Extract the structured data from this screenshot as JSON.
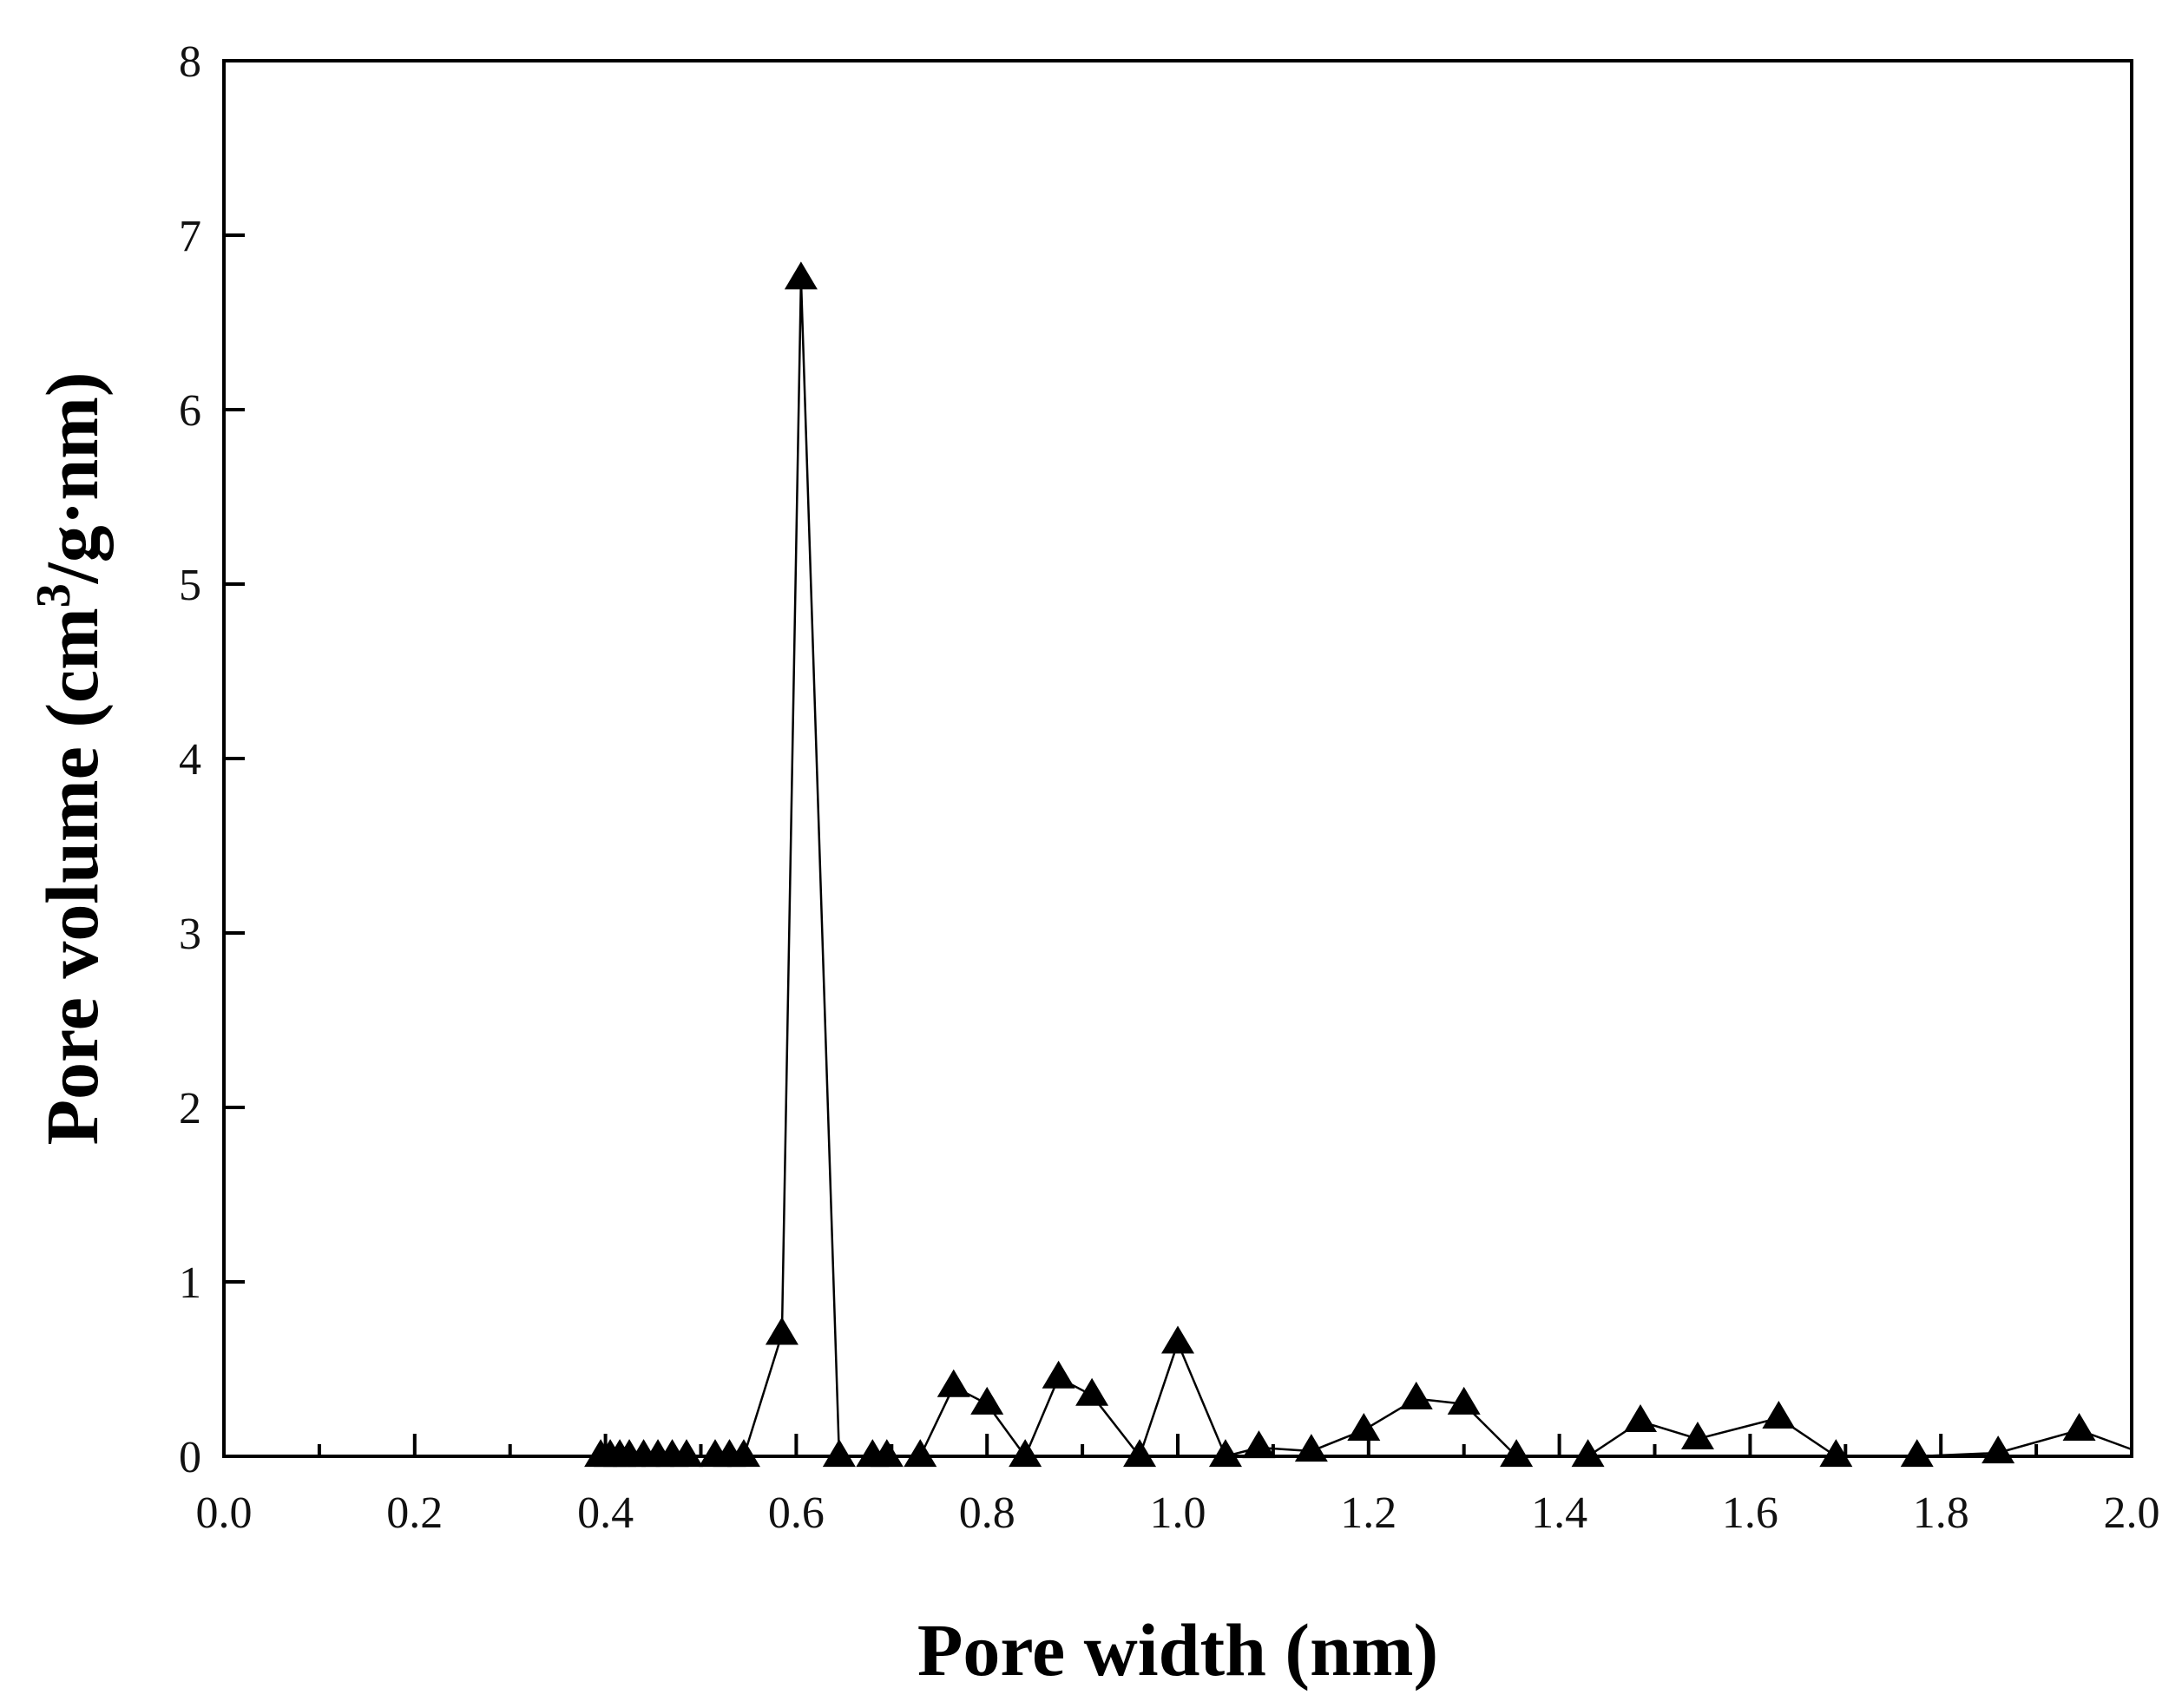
{
  "chart_data": {
    "type": "line",
    "title": "",
    "xlabel": "Pore width (nm)",
    "ylabel_main": "Pore volume (cm",
    "ylabel_sup": "3",
    "ylabel_tail": "/g·nm)",
    "xlim": [
      0.0,
      2.0
    ],
    "ylim": [
      0,
      8
    ],
    "x_ticks": [
      "0.0",
      "0.2",
      "0.4",
      "0.6",
      "0.8",
      "1.0",
      "1.2",
      "1.4",
      "1.6",
      "1.8",
      "2.0"
    ],
    "y_ticks": [
      "0",
      "1",
      "2",
      "3",
      "4",
      "5",
      "6",
      "7",
      "8"
    ],
    "grid": false,
    "marker": "filled-triangle",
    "color": "#000000",
    "series": [
      {
        "name": "Pore volume",
        "x": [
          0.395,
          0.405,
          0.415,
          0.425,
          0.44,
          0.455,
          0.47,
          0.485,
          0.515,
          0.53,
          0.545,
          0.585,
          0.605,
          0.645,
          0.68,
          0.695,
          0.73,
          0.765,
          0.8,
          0.84,
          0.875,
          0.91,
          0.96,
          1.0,
          1.05,
          1.085,
          1.14,
          1.195,
          1.25,
          1.3,
          1.355,
          1.43,
          1.485,
          1.545,
          1.63,
          1.69,
          1.775,
          1.86,
          1.945
        ],
        "y": [
          0,
          0,
          0,
          0,
          0,
          0,
          0,
          0,
          0,
          0,
          0,
          0.7,
          6.75,
          0,
          0,
          0,
          0,
          0.4,
          0.3,
          0,
          0.45,
          0.35,
          0,
          0.65,
          0,
          0.05,
          0.03,
          0.15,
          0.33,
          0.3,
          0,
          0,
          0.2,
          0.1,
          0.22,
          0,
          0,
          0.02,
          0.15
        ]
      }
    ]
  }
}
